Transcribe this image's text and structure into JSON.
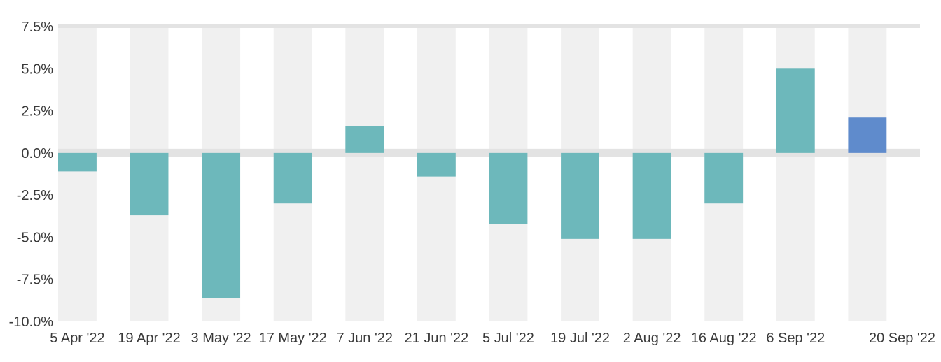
{
  "chart_data": {
    "type": "bar",
    "title": "",
    "xlabel": "",
    "ylabel": "",
    "categories": [
      "5 Apr '22",
      "19 Apr '22",
      "3 May '22",
      "17 May '22",
      "7 Jun '22",
      "21 Jun '22",
      "5 Jul '22",
      "19 Jul '22",
      "2 Aug '22",
      "16 Aug '22",
      "6 Sep '22",
      "20 Sep '22"
    ],
    "values": [
      -1.1,
      -3.7,
      -8.6,
      -3.0,
      1.6,
      -1.4,
      -4.2,
      -5.1,
      -5.1,
      -3.0,
      5.0,
      2.1
    ],
    "ylim": [
      -10,
      7.5
    ],
    "yticks": [
      7.5,
      5.0,
      2.5,
      0.0,
      -2.5,
      -5.0,
      -7.5,
      -10.0
    ],
    "ytick_labels": [
      "7.5%",
      "5.0%",
      "2.5%",
      "0.0%",
      "-2.5%",
      "-5.0%",
      "-7.5%",
      "-10.0%"
    ],
    "grid": true,
    "colors": {
      "bar": "#6db8bb",
      "highlight_bar": "#5f8bcc",
      "band": "#f0f0f0",
      "zero_line": "#e3e3e3",
      "top_line": "#e3e3e3"
    },
    "highlight_index": 11
  }
}
